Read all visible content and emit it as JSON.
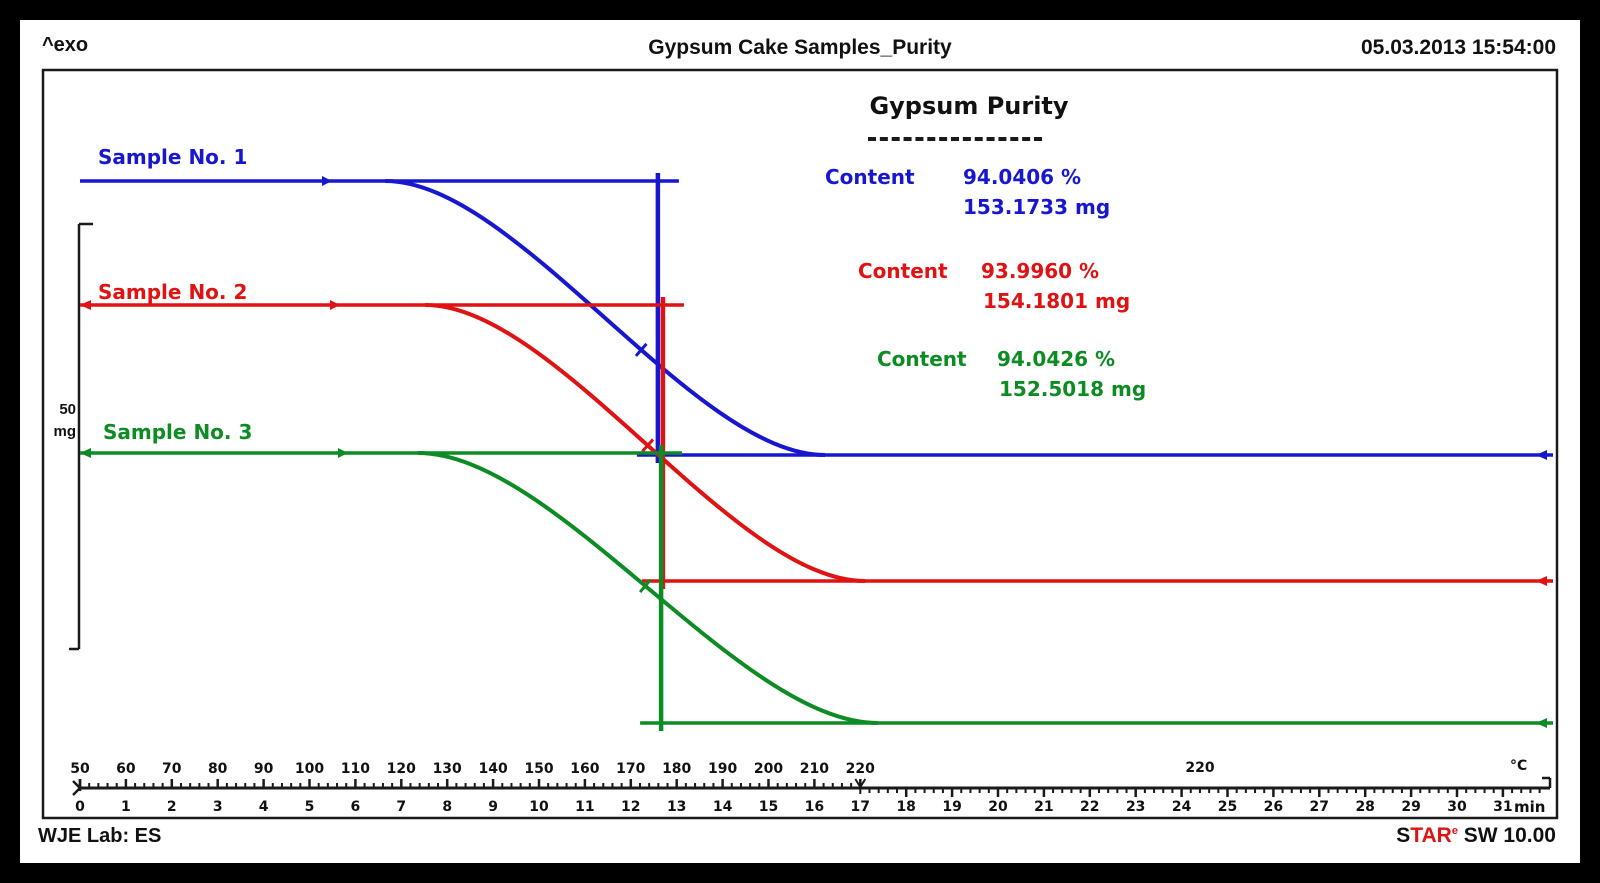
{
  "header": {
    "exo": "^exo",
    "title": "Gypsum Cake Samples_Purity",
    "datetime": "05.03.2013 15:54:00"
  },
  "footer": {
    "lab": "WJE Lab: ES",
    "software": [
      {
        "text": "S",
        "color": "#111111",
        "sup": false
      },
      {
        "text": "TAR",
        "color": "#e01212",
        "sup": false
      },
      {
        "text": "e",
        "color": "#e01212",
        "sup": true
      },
      {
        "text": " SW 10.00",
        "color": "#111111",
        "sup": false
      }
    ]
  },
  "annotation": {
    "title": "Gypsum Purity",
    "row_label": "Content"
  },
  "y_scale": {
    "value": "50",
    "unit": "mg"
  },
  "axis_units": {
    "temp": "°C",
    "time": "min",
    "isothermal_label": "220"
  },
  "samples": [
    {
      "label": "Sample No. 1",
      "color": "#1717d1",
      "content_percent": "94.0406 %",
      "content_mass": "153.1733 mg"
    },
    {
      "label": "Sample No. 2",
      "color": "#e01212",
      "content_percent": "93.9960 %",
      "content_mass": "154.1801 mg"
    },
    {
      "label": "Sample No. 3",
      "color": "#0c8c22",
      "content_percent": "94.0426 %",
      "content_mass": "152.5018 mg"
    }
  ],
  "chart_data": {
    "type": "line",
    "title": "Gypsum Cake Samples_Purity",
    "x_axis": {
      "temperature": {
        "start": 50,
        "end": 220,
        "unit": "°C",
        "major_tick_step": 10,
        "minor_tick_step": 2,
        "labels": [
          50,
          60,
          70,
          80,
          90,
          100,
          110,
          120,
          130,
          140,
          150,
          160,
          170,
          180,
          190,
          200,
          210,
          220
        ]
      },
      "time": {
        "start": 0,
        "end": 31.9,
        "unit": "min",
        "major_tick_step": 1,
        "minor_tick_step": 0.2,
        "labels": [
          0,
          1,
          2,
          3,
          4,
          5,
          6,
          7,
          8,
          9,
          10,
          11,
          12,
          13,
          14,
          15,
          16,
          17,
          18,
          19,
          20,
          21,
          22,
          23,
          24,
          25,
          26,
          27,
          28,
          29,
          30,
          31
        ]
      },
      "heating_rate_c_per_min": 10,
      "isothermal": {
        "temp": 220,
        "from_min": 17,
        "label": "220"
      }
    },
    "y_axis": {
      "scale_bar": {
        "value": 50,
        "unit": "mg"
      }
    },
    "series": [
      {
        "name": "Sample No. 1",
        "color": "#1717d1",
        "content_percent": 94.0406,
        "content_mg": 153.1733,
        "step_eval_min": 12.59,
        "geom": {
          "y_start": 181,
          "y_end": 455,
          "curve_start_min": 6.65,
          "curve_end_min": 16.23
        }
      },
      {
        "name": "Sample No. 2",
        "color": "#e01212",
        "content_percent": 93.996,
        "content_mg": 154.1801,
        "step_eval_min": 12.7,
        "geom": {
          "y_start": 305,
          "y_end": 581,
          "curve_start_min": 7.52,
          "curve_end_min": 17.1
        }
      },
      {
        "name": "Sample No. 3",
        "color": "#0c8c22",
        "content_percent": 94.0426,
        "content_mg": 152.5018,
        "step_eval_min": 12.66,
        "geom": {
          "y_start": 453,
          "y_end": 723,
          "curve_start_min": 7.36,
          "curve_end_min": 17.38
        }
      }
    ]
  }
}
